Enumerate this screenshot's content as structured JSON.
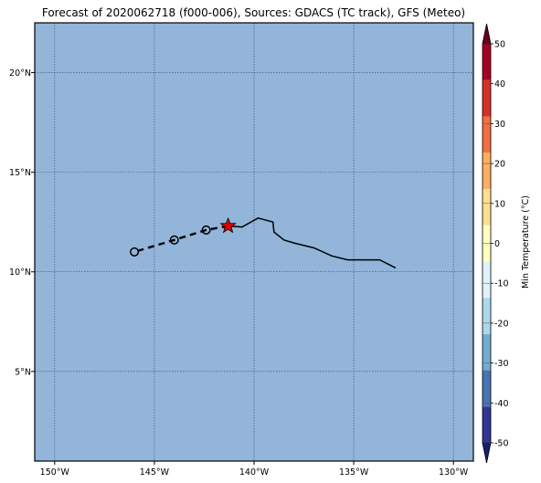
{
  "title": "Forecast of 2020062718 (f000-006), Sources: GDACS (TC track), GFS (Meteo)",
  "map": {
    "lon_range": [
      -151,
      -129
    ],
    "lat_range": [
      0.5,
      22.5
    ],
    "x_ticks": [
      {
        "value": -150,
        "label": "150°W"
      },
      {
        "value": -145,
        "label": "145°W"
      },
      {
        "value": -140,
        "label": "140°W"
      },
      {
        "value": -135,
        "label": "135°W"
      },
      {
        "value": -130,
        "label": "130°W"
      }
    ],
    "y_ticks": [
      {
        "value": 5,
        "label": "5°N"
      },
      {
        "value": 10,
        "label": "10°N"
      },
      {
        "value": 15,
        "label": "15°N"
      },
      {
        "value": 20,
        "label": "20°N"
      }
    ],
    "ocean_color": "#92b5d9",
    "grid": true
  },
  "observed_track": [
    [
      -132.9,
      10.2
    ],
    [
      -133.7,
      10.6
    ],
    [
      -135.3,
      10.6
    ],
    [
      -136.1,
      10.8
    ],
    [
      -137.0,
      11.2
    ],
    [
      -138.0,
      11.45
    ],
    [
      -138.5,
      11.6
    ],
    [
      -139.0,
      12.0
    ],
    [
      -139.05,
      12.5
    ],
    [
      -139.8,
      12.7
    ],
    [
      -140.6,
      12.25
    ],
    [
      -141.3,
      12.3
    ]
  ],
  "forecast_track": [
    [
      -141.3,
      12.3
    ],
    [
      -142.4,
      12.1
    ],
    [
      -144.0,
      11.6
    ],
    [
      -146.0,
      11.0
    ]
  ],
  "forecast_points": [
    [
      -142.4,
      12.1
    ],
    [
      -144.0,
      11.6
    ],
    [
      -146.0,
      11.0
    ]
  ],
  "current_position": [
    -141.3,
    12.3
  ],
  "colorbar": {
    "label": "Min Temperature (°C)",
    "ticks": [
      50,
      40,
      30,
      20,
      10,
      0,
      -10,
      -20,
      -30,
      -40,
      -50
    ],
    "levels": [
      -50,
      -40,
      -30,
      -20,
      -10,
      0,
      10,
      20,
      30,
      40,
      50
    ],
    "colors": [
      "#313695",
      "#4575b4",
      "#74add1",
      "#abd9e9",
      "#e0f3f8",
      "#ffffbf",
      "#fee090",
      "#fdae61",
      "#f46d43",
      "#d73027",
      "#a50026"
    ],
    "under_color": "#1a1e6e",
    "over_color": "#6b0019"
  }
}
